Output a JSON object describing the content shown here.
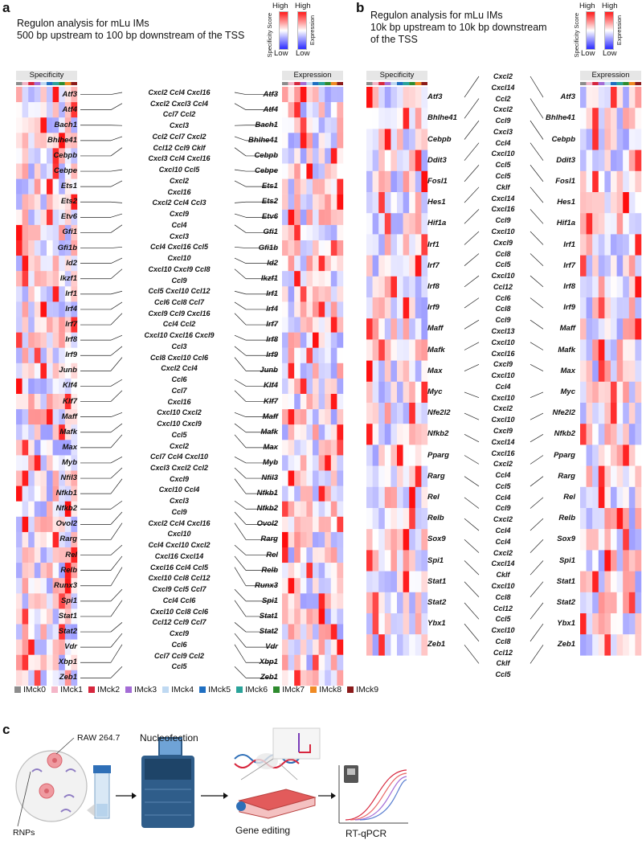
{
  "panel_a": {
    "letter": "a",
    "title_line1": "Regulon analysis for mLu IMs",
    "title_line2": "500 bp upstream to 100 bp downstream of the TSS",
    "spec_header": "Specificity",
    "expr_header": "Expression",
    "rows": [
      {
        "gene": "Atf3",
        "chemo": [
          "Cxcl2 Ccl4 Cxcl16"
        ]
      },
      {
        "gene": "Atf4",
        "chemo": [
          "Cxcl2 Cxcl3 Ccl4"
        ]
      },
      {
        "gene": "Bach1",
        "chemo": [
          "Ccl7 Ccl2"
        ]
      },
      {
        "gene": "Bhlhe41",
        "chemo": [
          "Cxcl3"
        ]
      },
      {
        "gene": "Cebpb",
        "chemo": [
          "Ccl2 Ccl7 Cxcl2",
          "Ccl12 Ccl9 Cklf",
          "Cxcl3 Ccl4 Cxcl16"
        ]
      },
      {
        "gene": "Cebpe",
        "chemo": [
          "Cxcl10 Ccl5"
        ]
      },
      {
        "gene": "Ets1",
        "chemo": [
          "Cxcl2"
        ]
      },
      {
        "gene": "Ets2",
        "chemo": [
          "Cxcl16"
        ]
      },
      {
        "gene": "Etv6",
        "chemo": [
          "Cxcl2 Ccl4 Ccl3"
        ]
      },
      {
        "gene": "Gfi1",
        "chemo": [
          "Cxcl9"
        ]
      },
      {
        "gene": "Gfi1b",
        "chemo": [
          "Ccl4"
        ]
      },
      {
        "gene": "Id2",
        "chemo": [
          "Cxcl3"
        ]
      },
      {
        "gene": "Ikzf1",
        "chemo": [
          "Ccl4 Cxcl16 Ccl5"
        ]
      },
      {
        "gene": "Irf1",
        "chemo": [
          "Cxcl10"
        ]
      },
      {
        "gene": "Irf4",
        "chemo": [
          "Cxcl10 Cxcl9 Ccl8"
        ]
      },
      {
        "gene": "Irf7",
        "chemo": [
          "Ccl9"
        ]
      },
      {
        "gene": "Irf8",
        "chemo": [
          "Ccl5 Cxcl10 Ccl12",
          "Ccl6 Ccl8 Ccl7"
        ]
      },
      {
        "gene": "Irf9",
        "chemo": [
          "Cxcl9 Ccl9 Cxcl16",
          "Ccl4 Ccl2"
        ]
      },
      {
        "gene": "Junb",
        "chemo": [
          "Cxcl10 Cxcl16 Cxcl9"
        ]
      },
      {
        "gene": "Klf4",
        "chemo": [
          "Ccl3"
        ]
      },
      {
        "gene": "Klf7",
        "chemo": [
          "Ccl8 Cxcl10 Ccl6"
        ]
      },
      {
        "gene": "Maff",
        "chemo": [
          "Cxcl2 Ccl4"
        ]
      },
      {
        "gene": "Mafk",
        "chemo": [
          "Ccl6"
        ]
      },
      {
        "gene": "Max",
        "chemo": [
          "Ccl7"
        ]
      },
      {
        "gene": "Myb",
        "chemo": [
          "Cxcl16"
        ]
      },
      {
        "gene": "Nfil3",
        "chemo": [
          "Cxcl10 Cxcl2"
        ]
      },
      {
        "gene": "Nfkb1",
        "chemo": [
          "Cxcl10 Cxcl9"
        ]
      },
      {
        "gene": "Nfkb2",
        "chemo": [
          "Ccl5"
        ]
      },
      {
        "gene": "Ovol2",
        "chemo": [
          "Cxcl2"
        ]
      },
      {
        "gene": "Rarg",
        "chemo": [
          "Ccl7 Ccl4 Cxcl10",
          "Cxcl3 Cxcl2 Ccl2"
        ]
      },
      {
        "gene": "Rel",
        "chemo": [
          "Cxcl9"
        ]
      },
      {
        "gene": "Relb",
        "chemo": [
          "Cxcl10 Ccl4"
        ]
      },
      {
        "gene": "Runx3",
        "chemo": [
          "Cxcl3"
        ]
      },
      {
        "gene": "Spi1",
        "chemo": [
          "Ccl9"
        ]
      },
      {
        "gene": "Stat1",
        "chemo": [
          "Cxcl2 Ccl4 Cxcl16"
        ]
      },
      {
        "gene": "Stat2",
        "chemo": [
          "Cxcl10"
        ]
      },
      {
        "gene": "Vdr",
        "chemo": [
          "Ccl4 Cxcl10 Cxcl2"
        ]
      },
      {
        "gene": "Xbp1",
        "chemo": [
          "Cxcl16 Cxcl14"
        ]
      },
      {
        "gene": "Zeb1",
        "chemo": [
          "Cxcl16 Ccl4 Ccl5"
        ]
      }
    ],
    "extra_chemo": [
      "Cxcl10 Ccl8 Ccl12",
      "Cxcl9 Ccl5 Ccl7",
      "Ccl4 Ccl6",
      "Cxcl10 Ccl8 Ccl6",
      "Ccl12 Ccl9 Ccl7",
      "Cxcl9",
      "Ccl6",
      "Ccl7 Ccl9 Ccl2",
      "Ccl5"
    ]
  },
  "panel_b": {
    "letter": "b",
    "title_line1": "Regulon analysis for mLu IMs",
    "title_line2": "10k bp upstream to 10k bp downstream",
    "title_line3": "of the TSS",
    "spec_header": "Specificity",
    "expr_header": "Expression",
    "genes": [
      "Atf3",
      "Bhlhe41",
      "Cebpb",
      "Ddit3",
      "Fosl1",
      "Hes1",
      "Hif1a",
      "Irf1",
      "Irf7",
      "Irf8",
      "Irf9",
      "Maff",
      "Mafk",
      "Max",
      "Myc",
      "Nfe2l2",
      "Nfkb2",
      "Pparg",
      "Rarg",
      "Rel",
      "Relb",
      "Sox9",
      "Spi1",
      "Stat1",
      "Stat2",
      "Ybx1",
      "Zeb1"
    ],
    "chemo": [
      "Cxcl2",
      "Cxcl14",
      "Ccl2",
      "Cxcl2",
      "Ccl9",
      "Cxcl3",
      "Ccl4",
      "Cxcl10",
      "Ccl5",
      "Ccl5",
      "Cklf",
      "Cxcl14",
      "Cxcl16",
      "Ccl9",
      "Cxcl10",
      "Cxcl9",
      "Ccl8",
      "Ccl5",
      "Cxcl10",
      "Ccl12",
      "Ccl6",
      "Ccl8",
      "Ccl9",
      "Cxcl13",
      "Cxcl10",
      "Cxcl16",
      "Cxcl9",
      "Cxcl10",
      "Ccl4",
      "Cxcl10",
      "Cxcl2",
      "Cxcl10",
      "Cxcl9",
      "Cxcl14",
      "Cxcl16",
      "Cxcl2",
      "Ccl4",
      "Ccl5",
      "Ccl4",
      "Ccl9",
      "Cxcl2",
      "Ccl4",
      "Ccl4",
      "Cxcl2",
      "Cxcl14",
      "Cklf",
      "Cxcl10",
      "Ccl8",
      "Ccl12",
      "Ccl5",
      "Cxcl10",
      "Ccl8",
      "Ccl12",
      "Cklf",
      "Ccl5"
    ]
  },
  "legend": {
    "high": "High",
    "low": "Low",
    "specificity_score": "Specificity Score",
    "expression": "Expression"
  },
  "clusters": [
    {
      "name": "IMck0",
      "color": "#8c8c8c"
    },
    {
      "name": "IMck1",
      "color": "#f4b6c8"
    },
    {
      "name": "IMck2",
      "color": "#d7263d"
    },
    {
      "name": "IMck3",
      "color": "#a46cd6"
    },
    {
      "name": "IMck4",
      "color": "#bfd9f2"
    },
    {
      "name": "IMck5",
      "color": "#1f6fc2"
    },
    {
      "name": "IMck6",
      "color": "#2aa39a"
    },
    {
      "name": "IMck7",
      "color": "#2e8b2e"
    },
    {
      "name": "IMck8",
      "color": "#f08a24"
    },
    {
      "name": "IMck9",
      "color": "#8b1a1a"
    }
  ],
  "panel_c": {
    "letter": "c",
    "raw_label": "RAW 264.7",
    "rnps_label": "RNPs",
    "nucleofection_label": "Nucleofection",
    "gene_editing_label": "Gene editing",
    "rtqpcr_label": "RT-qPCR"
  }
}
